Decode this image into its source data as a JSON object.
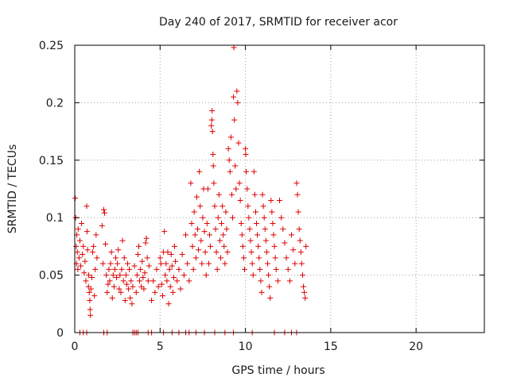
{
  "chart_data": {
    "type": "scatter",
    "title": "Day 240 of 2017, SRMTID for receiver acor",
    "xlabel": "GPS time / hours",
    "ylabel": "SRMTID / TECUs",
    "xlim": [
      0,
      24
    ],
    "ylim": [
      0,
      0.25
    ],
    "xticks": [
      0,
      5,
      10,
      15,
      20
    ],
    "xtick_labels": [
      "0",
      "5",
      "10",
      "15",
      "20"
    ],
    "yticks": [
      0,
      0.05,
      0.1,
      0.15,
      0.2,
      0.25
    ],
    "ytick_labels": [
      "0",
      "0.05",
      "0.1",
      "0.15",
      "0.2",
      "0.25"
    ],
    "grid": true,
    "marker": "+",
    "color": "#e00000",
    "series": [
      {
        "name": "SRMTID",
        "points": [
          [
            0.03,
            0.117
          ],
          [
            0.05,
            0.1
          ],
          [
            0.08,
            0.075
          ],
          [
            0.1,
            0.06
          ],
          [
            0.12,
            0.085
          ],
          [
            0.15,
            0.07
          ],
          [
            0.18,
            0.055
          ],
          [
            0.2,
            0.09
          ],
          [
            0.25,
            0.065
          ],
          [
            0.3,
            0.08
          ],
          [
            0.35,
            0.058
          ],
          [
            0.4,
            0.095
          ],
          [
            0.45,
            0.068
          ],
          [
            0.5,
            0.075
          ],
          [
            0.55,
            0.052
          ],
          [
            0.6,
            0.062
          ],
          [
            0.65,
            0.045
          ],
          [
            0.7,
            0.11
          ],
          [
            0.72,
            0.088
          ],
          [
            0.75,
            0.072
          ],
          [
            0.8,
            0.04
          ],
          [
            0.82,
            0.05
          ],
          [
            0.85,
            0.035
          ],
          [
            0.88,
            0.028
          ],
          [
            0.9,
            0.02
          ],
          [
            0.92,
            0.015
          ],
          [
            0.95,
            0.038
          ],
          [
            1.0,
            0.048
          ],
          [
            1.05,
            0.07
          ],
          [
            1.1,
            0.075
          ],
          [
            1.15,
            0.032
          ],
          [
            1.2,
            0.055
          ],
          [
            1.25,
            0.085
          ],
          [
            1.3,
            0.065
          ],
          [
            1.6,
            0.093
          ],
          [
            1.65,
            0.06
          ],
          [
            1.7,
            0.107
          ],
          [
            1.75,
            0.104
          ],
          [
            1.8,
            0.077
          ],
          [
            1.85,
            0.05
          ],
          [
            1.9,
            0.035
          ],
          [
            1.95,
            0.042
          ],
          [
            2.0,
            0.055
          ],
          [
            2.05,
            0.045
          ],
          [
            2.1,
            0.06
          ],
          [
            2.15,
            0.07
          ],
          [
            2.2,
            0.03
          ],
          [
            2.25,
            0.05
          ],
          [
            2.3,
            0.04
          ],
          [
            2.35,
            0.055
          ],
          [
            2.4,
            0.065
          ],
          [
            2.45,
            0.048
          ],
          [
            2.5,
            0.06
          ],
          [
            2.55,
            0.072
          ],
          [
            2.6,
            0.038
          ],
          [
            2.65,
            0.05
          ],
          [
            2.7,
            0.035
          ],
          [
            2.75,
            0.055
          ],
          [
            2.8,
            0.08
          ],
          [
            2.85,
            0.045
          ],
          [
            2.9,
            0.065
          ],
          [
            2.95,
            0.028
          ],
          [
            3.0,
            0.05
          ],
          [
            3.05,
            0.042
          ],
          [
            3.1,
            0.06
          ],
          [
            3.15,
            0.038
          ],
          [
            3.2,
            0.055
          ],
          [
            3.25,
            0.03
          ],
          [
            3.3,
            0.045
          ],
          [
            3.35,
            0.025
          ],
          [
            3.4,
            0.04
          ],
          [
            3.5,
            0.058
          ],
          [
            3.6,
            0.035
          ],
          [
            3.65,
            0.05
          ],
          [
            3.7,
            0.068
          ],
          [
            3.75,
            0.075
          ],
          [
            3.8,
            0.045
          ],
          [
            3.85,
            0.055
          ],
          [
            3.9,
            0.04
          ],
          [
            3.95,
            0.062
          ],
          [
            4.0,
            0.048
          ],
          [
            4.05,
            0.038
          ],
          [
            4.1,
            0.052
          ],
          [
            4.15,
            0.078
          ],
          [
            4.2,
            0.082
          ],
          [
            4.25,
            0.065
          ],
          [
            4.3,
            0.045
          ],
          [
            4.35,
            0.058
          ],
          [
            4.5,
            0.028
          ],
          [
            4.6,
            0.045
          ],
          [
            4.7,
            0.035
          ],
          [
            4.8,
            0.055
          ],
          [
            4.9,
            0.04
          ],
          [
            5.0,
            0.065
          ],
          [
            5.05,
            0.06
          ],
          [
            5.1,
            0.042
          ],
          [
            5.15,
            0.032
          ],
          [
            5.2,
            0.07
          ],
          [
            5.25,
            0.088
          ],
          [
            5.3,
            0.05
          ],
          [
            5.35,
            0.06
          ],
          [
            5.4,
            0.045
          ],
          [
            5.45,
            0.07
          ],
          [
            5.5,
            0.025
          ],
          [
            5.55,
            0.055
          ],
          [
            5.6,
            0.04
          ],
          [
            5.65,
            0.068
          ],
          [
            5.7,
            0.058
          ],
          [
            5.75,
            0.035
          ],
          [
            5.8,
            0.048
          ],
          [
            5.85,
            0.075
          ],
          [
            5.9,
            0.062
          ],
          [
            6.0,
            0.045
          ],
          [
            6.1,
            0.055
          ],
          [
            6.2,
            0.038
          ],
          [
            6.3,
            0.068
          ],
          [
            6.4,
            0.05
          ],
          [
            6.5,
            0.085
          ],
          [
            6.6,
            0.06
          ],
          [
            6.7,
            0.045
          ],
          [
            6.8,
            0.13
          ],
          [
            6.85,
            0.095
          ],
          [
            6.9,
            0.075
          ],
          [
            6.95,
            0.055
          ],
          [
            7.0,
            0.105
          ],
          [
            7.05,
            0.085
          ],
          [
            7.1,
            0.065
          ],
          [
            7.15,
            0.118
          ],
          [
            7.2,
            0.09
          ],
          [
            7.25,
            0.072
          ],
          [
            7.3,
            0.14
          ],
          [
            7.35,
            0.11
          ],
          [
            7.4,
            0.08
          ],
          [
            7.45,
            0.06
          ],
          [
            7.5,
            0.1
          ],
          [
            7.55,
            0.125
          ],
          [
            7.6,
            0.088
          ],
          [
            7.65,
            0.07
          ],
          [
            7.7,
            0.05
          ],
          [
            7.75,
            0.095
          ],
          [
            7.8,
            0.125
          ],
          [
            7.85,
            0.06
          ],
          [
            7.9,
            0.085
          ],
          [
            7.95,
            0.075
          ],
          [
            8.0,
            0.18
          ],
          [
            8.03,
            0.185
          ],
          [
            8.05,
            0.193
          ],
          [
            8.07,
            0.175
          ],
          [
            8.1,
            0.155
          ],
          [
            8.12,
            0.145
          ],
          [
            8.15,
            0.13
          ],
          [
            8.2,
            0.11
          ],
          [
            8.25,
            0.09
          ],
          [
            8.3,
            0.07
          ],
          [
            8.35,
            0.055
          ],
          [
            8.4,
            0.1
          ],
          [
            8.45,
            0.12
          ],
          [
            8.5,
            0.08
          ],
          [
            8.55,
            0.065
          ],
          [
            8.6,
            0.095
          ],
          [
            8.65,
            0.11
          ],
          [
            8.7,
            0.085
          ],
          [
            8.75,
            0.075
          ],
          [
            8.8,
            0.06
          ],
          [
            8.85,
            0.105
          ],
          [
            8.9,
            0.09
          ],
          [
            8.95,
            0.07
          ],
          [
            9.0,
            0.16
          ],
          [
            9.05,
            0.15
          ],
          [
            9.1,
            0.14
          ],
          [
            9.15,
            0.17
          ],
          [
            9.2,
            0.12
          ],
          [
            9.25,
            0.1
          ],
          [
            9.3,
            0.205
          ],
          [
            9.32,
            0.248
          ],
          [
            9.35,
            0.185
          ],
          [
            9.4,
            0.145
          ],
          [
            9.45,
            0.125
          ],
          [
            9.5,
            0.21
          ],
          [
            9.55,
            0.2
          ],
          [
            9.6,
            0.165
          ],
          [
            9.65,
            0.13
          ],
          [
            9.7,
            0.115
          ],
          [
            9.75,
            0.095
          ],
          [
            9.8,
            0.085
          ],
          [
            9.85,
            0.075
          ],
          [
            9.9,
            0.065
          ],
          [
            9.95,
            0.055
          ],
          [
            10.0,
            0.16
          ],
          [
            10.02,
            0.155
          ],
          [
            10.05,
            0.14
          ],
          [
            10.1,
            0.125
          ],
          [
            10.15,
            0.11
          ],
          [
            10.2,
            0.1
          ],
          [
            10.25,
            0.09
          ],
          [
            10.3,
            0.08
          ],
          [
            10.35,
            0.07
          ],
          [
            10.4,
            0.06
          ],
          [
            10.45,
            0.05
          ],
          [
            10.5,
            0.14
          ],
          [
            10.55,
            0.12
          ],
          [
            10.6,
            0.105
          ],
          [
            10.65,
            0.095
          ],
          [
            10.7,
            0.085
          ],
          [
            10.75,
            0.075
          ],
          [
            10.8,
            0.065
          ],
          [
            10.85,
            0.055
          ],
          [
            10.9,
            0.045
          ],
          [
            10.95,
            0.035
          ],
          [
            11.0,
            0.12
          ],
          [
            11.05,
            0.11
          ],
          [
            11.1,
            0.1
          ],
          [
            11.15,
            0.09
          ],
          [
            11.2,
            0.08
          ],
          [
            11.25,
            0.07
          ],
          [
            11.3,
            0.06
          ],
          [
            11.35,
            0.05
          ],
          [
            11.4,
            0.04
          ],
          [
            11.45,
            0.03
          ],
          [
            11.5,
            0.115
          ],
          [
            11.55,
            0.105
          ],
          [
            11.6,
            0.095
          ],
          [
            11.65,
            0.085
          ],
          [
            11.7,
            0.075
          ],
          [
            11.75,
            0.065
          ],
          [
            11.8,
            0.055
          ],
          [
            11.9,
            0.045
          ],
          [
            12.0,
            0.115
          ],
          [
            12.1,
            0.1
          ],
          [
            12.2,
            0.09
          ],
          [
            12.3,
            0.078
          ],
          [
            12.4,
            0.065
          ],
          [
            12.5,
            0.055
          ],
          [
            12.6,
            0.045
          ],
          [
            12.7,
            0.085
          ],
          [
            12.8,
            0.072
          ],
          [
            12.9,
            0.06
          ],
          [
            13.0,
            0.13
          ],
          [
            13.05,
            0.12
          ],
          [
            13.1,
            0.105
          ],
          [
            13.15,
            0.09
          ],
          [
            13.2,
            0.08
          ],
          [
            13.25,
            0.07
          ],
          [
            13.3,
            0.06
          ],
          [
            13.35,
            0.05
          ],
          [
            13.4,
            0.04
          ],
          [
            13.45,
            0.035
          ],
          [
            13.5,
            0.03
          ],
          [
            13.55,
            0.075
          ],
          [
            0.3,
            0.0
          ],
          [
            0.5,
            0.0
          ],
          [
            0.7,
            0.0
          ],
          [
            1.7,
            0.0
          ],
          [
            1.9,
            0.0
          ],
          [
            3.4,
            0.0
          ],
          [
            3.5,
            0.0
          ],
          [
            3.6,
            0.0
          ],
          [
            3.7,
            0.0
          ],
          [
            4.3,
            0.0
          ],
          [
            4.5,
            0.0
          ],
          [
            5.2,
            0.0
          ],
          [
            5.7,
            0.0
          ],
          [
            6.1,
            0.0
          ],
          [
            6.5,
            0.0
          ],
          [
            6.7,
            0.0
          ],
          [
            7.1,
            0.0
          ],
          [
            7.6,
            0.0
          ],
          [
            8.2,
            0.0
          ],
          [
            8.8,
            0.0
          ],
          [
            9.3,
            0.0
          ],
          [
            10.4,
            0.0
          ],
          [
            11.7,
            0.0
          ],
          [
            12.3,
            0.0
          ],
          [
            12.7,
            0.0
          ],
          [
            13.0,
            0.0
          ]
        ]
      }
    ]
  }
}
